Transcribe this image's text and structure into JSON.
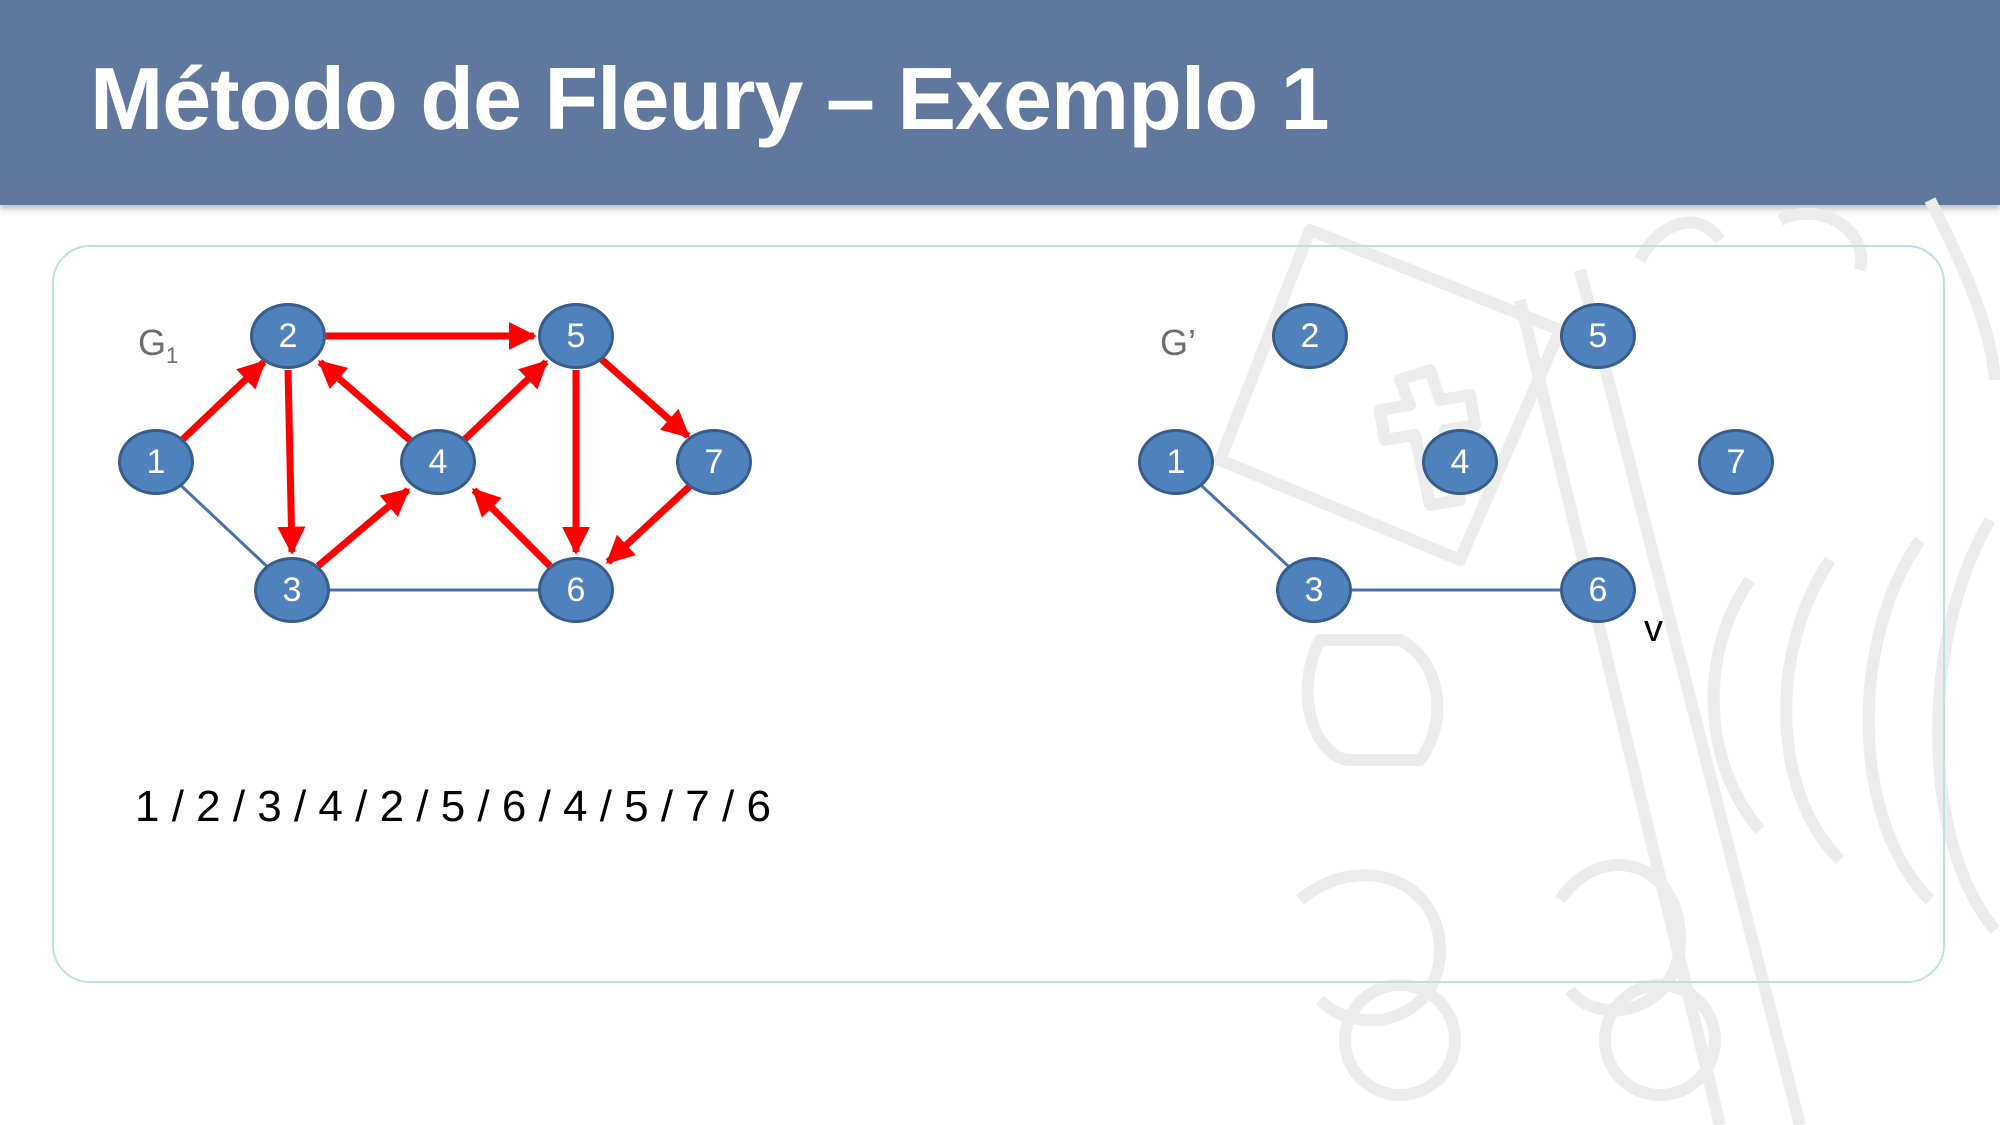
{
  "slide": {
    "title": "Método de Fleury – Exemplo 1",
    "path_sequence": "1 / 2 / 3 / 4 / 2 / 5 / 6 / 4 / 5 / 7 / 6",
    "current_vertex_label": "v"
  },
  "graph_g1": {
    "label": "G",
    "label_subscript": "1",
    "nodes": [
      "1",
      "2",
      "3",
      "4",
      "5",
      "6",
      "7"
    ],
    "traversed_edges": [
      [
        "1",
        "2"
      ],
      [
        "2",
        "3"
      ],
      [
        "3",
        "4"
      ],
      [
        "4",
        "2"
      ],
      [
        "2",
        "5"
      ],
      [
        "5",
        "6"
      ],
      [
        "6",
        "4"
      ],
      [
        "4",
        "5"
      ],
      [
        "5",
        "7"
      ],
      [
        "7",
        "6"
      ]
    ],
    "remaining_edges": [
      [
        "1",
        "3"
      ],
      [
        "3",
        "6"
      ]
    ]
  },
  "graph_g_prime": {
    "label": "G’",
    "nodes": [
      "1",
      "2",
      "3",
      "4",
      "5",
      "6",
      "7"
    ],
    "edges": [
      [
        "1",
        "3"
      ],
      [
        "3",
        "6"
      ]
    ]
  },
  "colors": {
    "header": "#60789d",
    "node_fill": "#4f81bd",
    "node_border": "#375d8c",
    "traversed_edge": "#ff0000",
    "remaining_edge": "#4a72a8",
    "panel_border": "#b9e2e6"
  }
}
